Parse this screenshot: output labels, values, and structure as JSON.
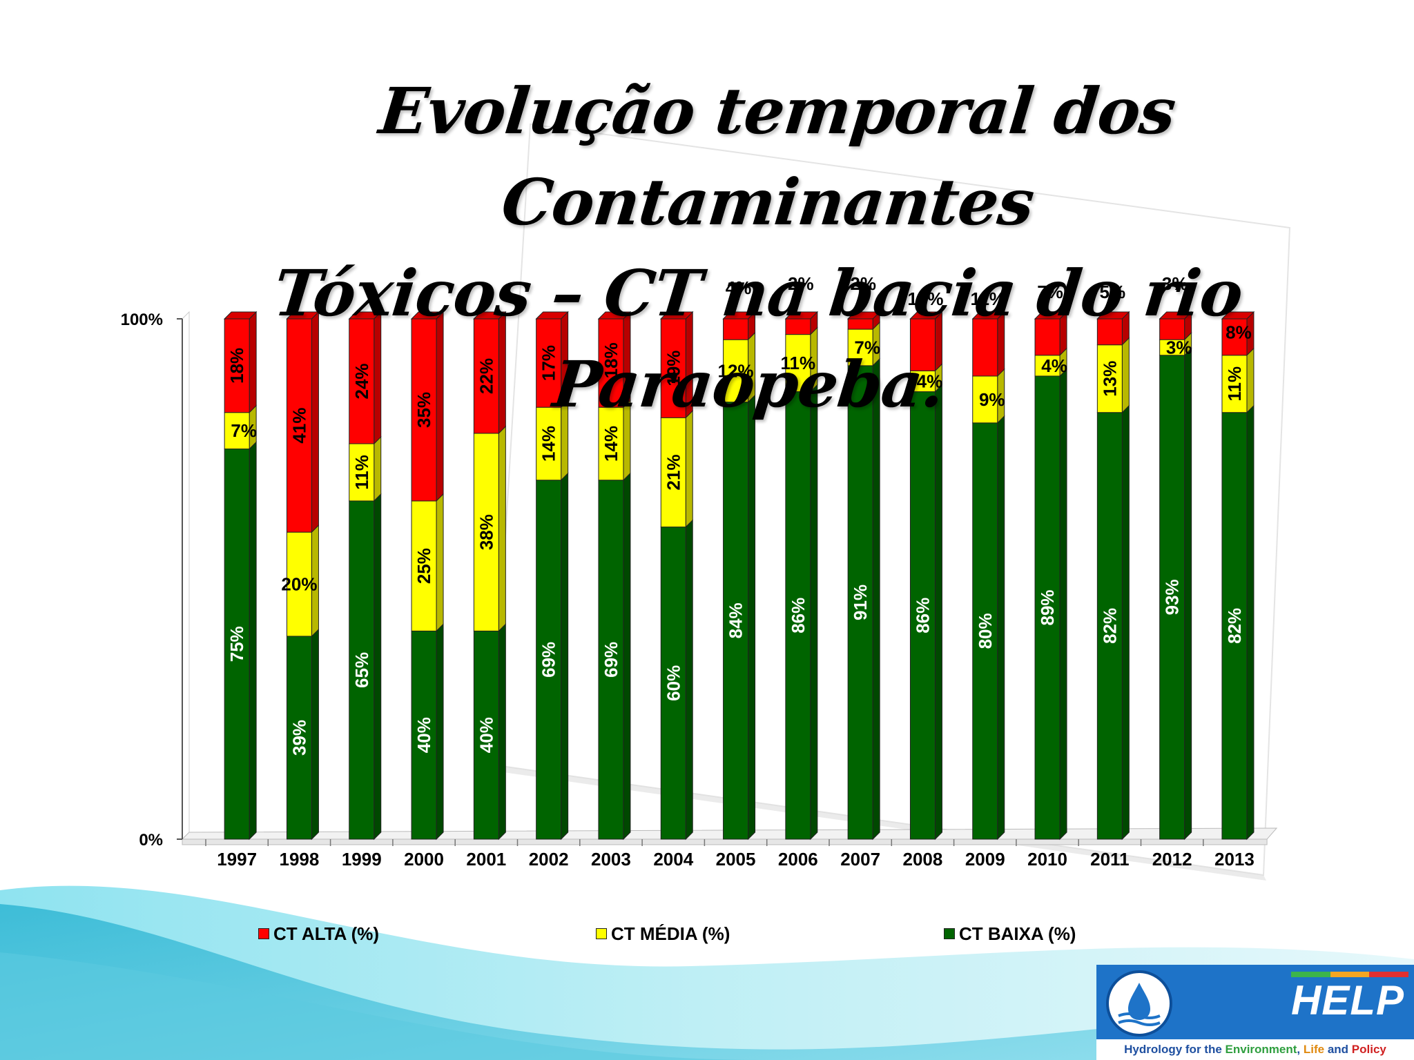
{
  "slide": {
    "title_line1": "Evolução temporal dos Contaminantes",
    "title_line2": "Tóxicos – CT na bacia do rio Paraopeba."
  },
  "colors": {
    "alta": "#ff0000",
    "media": "#ffff00",
    "baixa": "#006400",
    "wave_light": "#bfeff5",
    "wave_mid": "#6fd3e6",
    "wave_dark": "#2fb6d3"
  },
  "chart_data": {
    "type": "bar",
    "stacked": true,
    "percent_stacked": true,
    "categories": [
      "1997",
      "1998",
      "1999",
      "2000",
      "2001",
      "2002",
      "2003",
      "2004",
      "2005",
      "2006",
      "2007",
      "2008",
      "2009",
      "2010",
      "2011",
      "2012",
      "2013"
    ],
    "series": [
      {
        "name": "CT BAIXA (%)",
        "color": "#006400",
        "values": [
          75,
          39,
          65,
          40,
          40,
          69,
          69,
          60,
          84,
          86,
          91,
          86,
          80,
          89,
          82,
          93,
          82
        ],
        "labels": [
          "75%",
          "39%",
          "65%",
          "40%",
          "40%",
          "69%",
          "69%",
          "60%",
          "84%",
          "86%",
          "91%",
          "86%",
          "80%",
          "89%",
          "82%",
          "93%",
          "82%"
        ]
      },
      {
        "name": "CT MÉDIA (%)",
        "color": "#ffff00",
        "values": [
          7,
          20,
          11,
          25,
          38,
          14,
          14,
          21,
          12,
          11,
          7,
          4,
          9,
          4,
          13,
          3,
          11
        ],
        "labels": [
          "7%",
          "20%",
          "11%",
          "25%",
          "38%",
          "14%",
          "14%",
          "21%",
          "12%",
          "11%",
          "7%",
          "4%",
          "9%",
          "4%",
          "13%",
          "3%",
          "11%"
        ]
      },
      {
        "name": "CT ALTA (%)",
        "color": "#ff0000",
        "values": [
          18,
          41,
          24,
          35,
          22,
          17,
          18,
          19,
          4,
          2,
          2,
          10,
          11,
          7,
          5,
          3,
          8
        ],
        "labels": [
          "18%",
          "41%",
          "24%",
          "35%",
          "22%",
          "17%",
          "18%",
          "19%",
          "4%",
          "2%",
          "2%",
          "10%",
          "11%",
          "7%",
          "5%",
          "3%",
          "8%"
        ]
      }
    ],
    "y_ticks": [
      "0%",
      "100%"
    ],
    "ylim": [
      0,
      100
    ],
    "legend": [
      "CT ALTA (%)",
      "CT MÉDIA (%)",
      "CT BAIXA (%)"
    ],
    "legend_position": "bottom"
  },
  "logo": {
    "name": "HELP",
    "tagline_1": "Hydrology for the ",
    "tagline_2": "Environment",
    "tagline_3": ", ",
    "tagline_4": "Life",
    "tagline_5": " and ",
    "tagline_6": "Policy"
  }
}
